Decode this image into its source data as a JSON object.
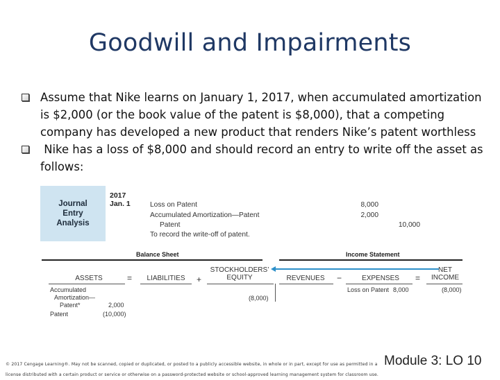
{
  "slide": {
    "title": "Goodwill and Impairments",
    "bullets": [
      "Assume that Nike learns on January 1, 2017, when accumulated amortization is $2,000 (or the book value of the patent is $8,000), that a competing company has developed a new product that renders Nike’s patent worthless",
      " Nike has a loss of $8,000 and should record an entry to write off the asset as follows:"
    ]
  },
  "journal": {
    "label_lines": [
      "Journal",
      "Entry",
      "Analysis"
    ],
    "year": "2017",
    "date": "Jan. 1",
    "lines": [
      {
        "account": "Loss on Patent",
        "debit": "8,000",
        "credit": ""
      },
      {
        "account": "Accumulated Amortization—Patent",
        "debit": "2,000",
        "credit": ""
      },
      {
        "account": "Patent",
        "debit": "",
        "credit": "10,000"
      },
      {
        "account": "To record the write-off of patent.",
        "debit": "",
        "credit": ""
      }
    ]
  },
  "equation": {
    "balance_sheet_label": "Balance Sheet",
    "income_statement_label": "Income Statement",
    "assets": "ASSETS",
    "liabilities": "LIABILITIES",
    "equity_line1": "STOCKHOLDERS’",
    "equity_line2": "EQUITY",
    "revenues": "REVENUES",
    "expenses": "EXPENSES",
    "net_line1": "NET",
    "net_line2": "INCOME",
    "op_eq1": "=",
    "op_plus": "+",
    "op_minus": "−",
    "op_eq2": "=",
    "asset_item1_lines": [
      "Accumulated",
      "Amortization—",
      "Patent*"
    ],
    "asset_item1_amount": "2,000",
    "asset_item2": "Patent",
    "asset_item2_amount": "(10,000)",
    "equity_amount": "(8,000)",
    "expense_item": "Loss on Patent",
    "expense_amount": "8,000",
    "net_income_amount": "(8,000)"
  },
  "footer": {
    "copyright": "© 2017 Cengage Learning®. May not be scanned, copied or duplicated, or posted to a publicly accessible website, in whole or in part, except for use as permitted in a license distributed with a certain product or service or otherwise on a password-protected website or school-approved learning management system for classroom use.",
    "module": "Module 3: LO 10"
  }
}
